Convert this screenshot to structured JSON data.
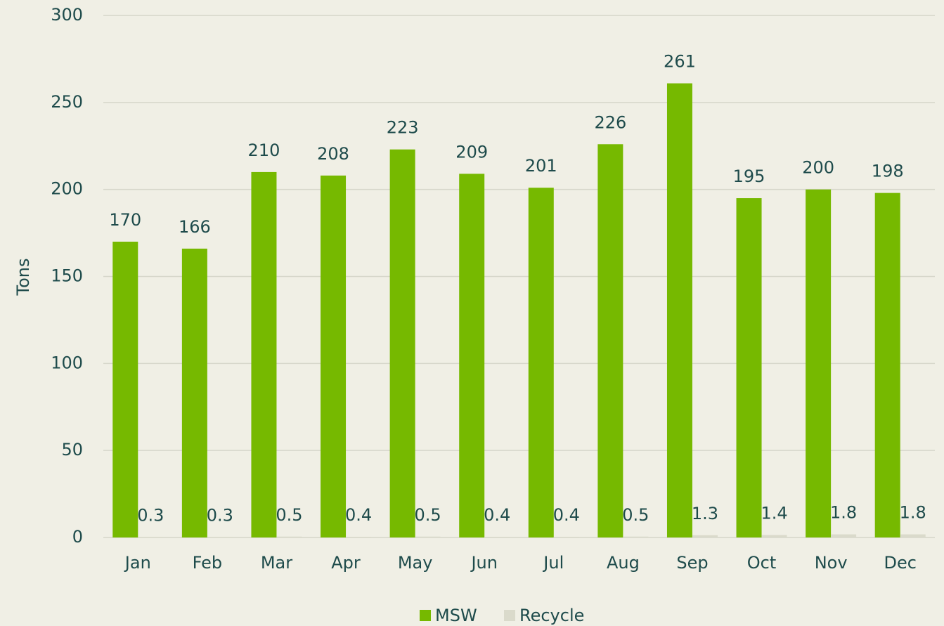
{
  "chart_data": {
    "type": "bar",
    "y_label": "Tons",
    "categories": [
      "Jan",
      "Feb",
      "Mar",
      "Apr",
      "May",
      "Jun",
      "Jul",
      "Aug",
      "Sep",
      "Oct",
      "Nov",
      "Dec"
    ],
    "series": [
      {
        "name": "MSW",
        "color": "#76b900",
        "values": [
          170,
          166,
          210,
          208,
          223,
          209,
          201,
          226,
          261,
          195,
          200,
          198
        ]
      },
      {
        "name": "Recycle",
        "color": "#dadacb",
        "values": [
          0.3,
          0.3,
          0.5,
          0.4,
          0.5,
          0.4,
          0.4,
          0.5,
          1.3,
          1.4,
          1.8,
          1.8
        ]
      }
    ],
    "ylim": [
      0,
      300
    ],
    "yticks": [
      0,
      50,
      100,
      150,
      200,
      250,
      300
    ],
    "grid": true,
    "legend": "bottom"
  }
}
